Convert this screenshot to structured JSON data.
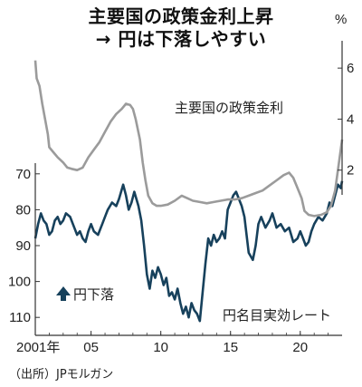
{
  "header": {
    "title_line1": "主要国の政策金利上昇",
    "title_line2": "→ 円は下落しやすい"
  },
  "source": "（出所）JPモルガン",
  "colors": {
    "policy_rate": "#9b9b9b",
    "yen_reer": "#17415c",
    "axis": "#333333"
  },
  "chart_data": {
    "type": "line",
    "x_unit_years": [
      2001,
      2023
    ],
    "x_ticks": [
      {
        "value": 2001,
        "label": "2001年"
      },
      {
        "value": 2005,
        "label": "05"
      },
      {
        "value": 2010,
        "label": "10"
      },
      {
        "value": 2015,
        "label": "15"
      },
      {
        "value": 2020,
        "label": "20"
      }
    ],
    "right_axis": {
      "unit": "%",
      "range": [
        0,
        7
      ],
      "ticks": [
        {
          "value": 2,
          "label": "2"
        },
        {
          "value": 4,
          "label": "4"
        },
        {
          "value": 6,
          "label": "6"
        }
      ]
    },
    "left_axis": {
      "inverted": true,
      "range": [
        65,
        115
      ],
      "ticks": [
        {
          "value": 70,
          "label": "70"
        },
        {
          "value": 80,
          "label": "80"
        },
        {
          "value": 90,
          "label": "90"
        },
        {
          "value": 100,
          "label": "100"
        },
        {
          "value": 110,
          "label": "110"
        }
      ]
    },
    "annotations": {
      "policy_rate_label": "主要国の政策金利",
      "yen_label": "円名目実効レート",
      "yen_down": "円下落"
    },
    "series": [
      {
        "name": "主要国の政策金利",
        "axis": "right",
        "points": [
          [
            2001.0,
            6.3
          ],
          [
            2001.1,
            5.6
          ],
          [
            2001.3,
            5.3
          ],
          [
            2001.5,
            4.6
          ],
          [
            2001.7,
            4.0
          ],
          [
            2001.9,
            3.4
          ],
          [
            2002.0,
            2.9
          ],
          [
            2002.3,
            2.7
          ],
          [
            2002.6,
            2.5
          ],
          [
            2003.0,
            2.3
          ],
          [
            2003.3,
            2.1
          ],
          [
            2003.6,
            2.05
          ],
          [
            2004.0,
            2.0
          ],
          [
            2004.4,
            2.1
          ],
          [
            2004.8,
            2.5
          ],
          [
            2005.2,
            2.8
          ],
          [
            2005.6,
            3.1
          ],
          [
            2006.0,
            3.5
          ],
          [
            2006.4,
            3.9
          ],
          [
            2006.8,
            4.2
          ],
          [
            2007.2,
            4.4
          ],
          [
            2007.5,
            4.6
          ],
          [
            2007.8,
            4.55
          ],
          [
            2008.0,
            4.4
          ],
          [
            2008.2,
            4.0
          ],
          [
            2008.5,
            3.2
          ],
          [
            2008.7,
            2.3
          ],
          [
            2008.9,
            1.6
          ],
          [
            2009.1,
            1.0
          ],
          [
            2009.4,
            0.7
          ],
          [
            2009.7,
            0.6
          ],
          [
            2010.0,
            0.6
          ],
          [
            2010.5,
            0.65
          ],
          [
            2011.0,
            0.8
          ],
          [
            2011.5,
            1.0
          ],
          [
            2011.9,
            0.9
          ],
          [
            2012.3,
            0.8
          ],
          [
            2012.8,
            0.75
          ],
          [
            2013.3,
            0.7
          ],
          [
            2013.8,
            0.75
          ],
          [
            2014.3,
            0.8
          ],
          [
            2014.8,
            0.85
          ],
          [
            2015.3,
            0.85
          ],
          [
            2015.8,
            0.9
          ],
          [
            2016.3,
            1.0
          ],
          [
            2016.8,
            1.1
          ],
          [
            2017.3,
            1.2
          ],
          [
            2017.8,
            1.4
          ],
          [
            2018.3,
            1.6
          ],
          [
            2018.8,
            1.8
          ],
          [
            2019.2,
            1.9
          ],
          [
            2019.5,
            1.7
          ],
          [
            2019.8,
            1.3
          ],
          [
            2020.1,
            0.9
          ],
          [
            2020.3,
            0.4
          ],
          [
            2020.6,
            0.25
          ],
          [
            2021.0,
            0.2
          ],
          [
            2021.5,
            0.25
          ],
          [
            2021.9,
            0.35
          ],
          [
            2022.2,
            0.6
          ],
          [
            2022.5,
            1.2
          ],
          [
            2022.7,
            2.0
          ],
          [
            2022.9,
            2.8
          ],
          [
            2023.0,
            3.2
          ]
        ]
      },
      {
        "name": "円名目実効レート",
        "axis": "left",
        "points": [
          [
            2001.0,
            88
          ],
          [
            2001.2,
            84
          ],
          [
            2001.4,
            81
          ],
          [
            2001.6,
            83
          ],
          [
            2001.8,
            84
          ],
          [
            2002.0,
            87
          ],
          [
            2002.2,
            86
          ],
          [
            2002.4,
            83
          ],
          [
            2002.6,
            82
          ],
          [
            2002.8,
            84
          ],
          [
            2003.0,
            83
          ],
          [
            2003.2,
            81
          ],
          [
            2003.5,
            82
          ],
          [
            2003.8,
            85
          ],
          [
            2004.0,
            87
          ],
          [
            2004.2,
            86
          ],
          [
            2004.4,
            88
          ],
          [
            2004.6,
            89
          ],
          [
            2004.8,
            86
          ],
          [
            2005.0,
            84
          ],
          [
            2005.2,
            86
          ],
          [
            2005.5,
            87
          ],
          [
            2005.8,
            84
          ],
          [
            2006.0,
            82
          ],
          [
            2006.2,
            80
          ],
          [
            2006.5,
            78
          ],
          [
            2006.8,
            79
          ],
          [
            2007.0,
            77
          ],
          [
            2007.3,
            73
          ],
          [
            2007.5,
            76
          ],
          [
            2007.7,
            80
          ],
          [
            2007.9,
            78
          ],
          [
            2008.1,
            75
          ],
          [
            2008.4,
            79
          ],
          [
            2008.6,
            83
          ],
          [
            2008.8,
            90
          ],
          [
            2009.0,
            98
          ],
          [
            2009.2,
            102
          ],
          [
            2009.4,
            97
          ],
          [
            2009.6,
            99
          ],
          [
            2009.8,
            96
          ],
          [
            2010.0,
            98
          ],
          [
            2010.2,
            101
          ],
          [
            2010.4,
            99
          ],
          [
            2010.6,
            104
          ],
          [
            2010.8,
            103
          ],
          [
            2011.0,
            105
          ],
          [
            2011.2,
            102
          ],
          [
            2011.4,
            106
          ],
          [
            2011.6,
            109
          ],
          [
            2011.8,
            107
          ],
          [
            2012.0,
            110
          ],
          [
            2012.2,
            106
          ],
          [
            2012.4,
            108
          ],
          [
            2012.6,
            109
          ],
          [
            2012.8,
            111
          ],
          [
            2013.0,
            103
          ],
          [
            2013.2,
            95
          ],
          [
            2013.4,
            88
          ],
          [
            2013.6,
            90
          ],
          [
            2013.8,
            87
          ],
          [
            2014.0,
            89
          ],
          [
            2014.2,
            88
          ],
          [
            2014.4,
            86
          ],
          [
            2014.6,
            88
          ],
          [
            2014.8,
            80
          ],
          [
            2015.0,
            78
          ],
          [
            2015.2,
            76
          ],
          [
            2015.4,
            75
          ],
          [
            2015.6,
            77
          ],
          [
            2015.8,
            79
          ],
          [
            2016.0,
            82
          ],
          [
            2016.3,
            92
          ],
          [
            2016.6,
            94
          ],
          [
            2016.8,
            90
          ],
          [
            2017.0,
            84
          ],
          [
            2017.2,
            82
          ],
          [
            2017.5,
            85
          ],
          [
            2017.8,
            83
          ],
          [
            2018.0,
            81
          ],
          [
            2018.3,
            85
          ],
          [
            2018.6,
            84
          ],
          [
            2018.9,
            86
          ],
          [
            2019.2,
            85
          ],
          [
            2019.5,
            89
          ],
          [
            2019.8,
            88
          ],
          [
            2020.0,
            86
          ],
          [
            2020.2,
            88
          ],
          [
            2020.4,
            90
          ],
          [
            2020.6,
            89
          ],
          [
            2020.8,
            86
          ],
          [
            2021.0,
            84
          ],
          [
            2021.3,
            82
          ],
          [
            2021.6,
            83
          ],
          [
            2021.9,
            81
          ],
          [
            2022.1,
            78
          ],
          [
            2022.3,
            79
          ],
          [
            2022.5,
            76
          ],
          [
            2022.7,
            73
          ],
          [
            2022.9,
            74
          ],
          [
            2023.0,
            72
          ]
        ]
      }
    ]
  }
}
